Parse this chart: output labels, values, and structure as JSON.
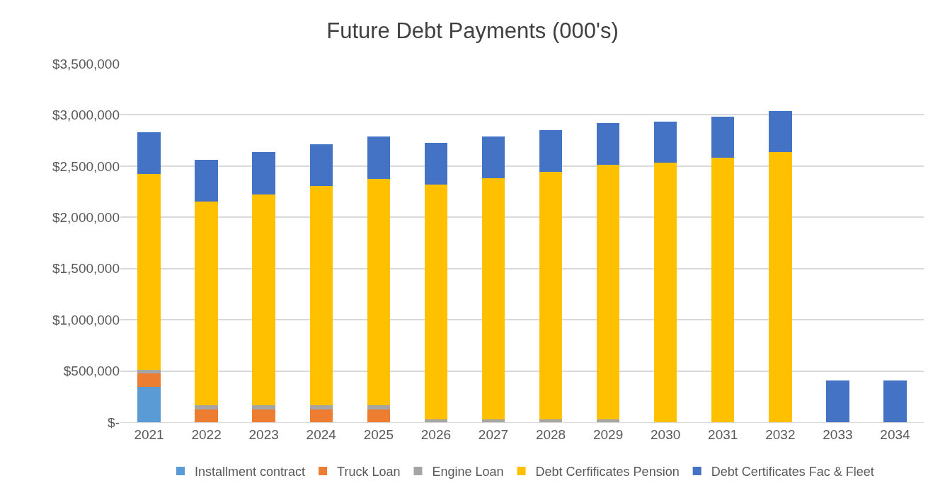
{
  "chart_data": {
    "type": "bar",
    "title": "Future Debt Payments (000's)",
    "stacked": true,
    "grid": "y",
    "legend": "bottom",
    "categories": [
      "2021",
      "2022",
      "2023",
      "2024",
      "2025",
      "2026",
      "2027",
      "2028",
      "2029",
      "2030",
      "2031",
      "2032",
      "2033",
      "2034"
    ],
    "ylim": [
      0,
      3500000
    ],
    "yticks": [
      {
        "value": 0,
        "label": "$-"
      },
      {
        "value": 500000,
        "label": "$500,000"
      },
      {
        "value": 1000000,
        "label": "$1,000,000"
      },
      {
        "value": 1500000,
        "label": "$1,500,000"
      },
      {
        "value": 2000000,
        "label": "$2,000,000"
      },
      {
        "value": 2500000,
        "label": "$2,500,000"
      },
      {
        "value": 3000000,
        "label": "$3,000,000"
      },
      {
        "value": 3500000,
        "label": "$3,500,000"
      }
    ],
    "series": [
      {
        "name": "Installment contract",
        "color": "#5b9bd5",
        "values": [
          348000,
          null,
          null,
          null,
          null,
          null,
          null,
          null,
          null,
          null,
          null,
          null,
          null,
          null
        ]
      },
      {
        "name": "Truck Loan",
        "color": "#ed7d31",
        "values": [
          130000,
          125000,
          125000,
          125000,
          125000,
          null,
          null,
          null,
          null,
          null,
          null,
          null,
          null,
          null
        ]
      },
      {
        "name": "Engine Loan",
        "color": "#a5a5a5",
        "values": [
          36000,
          41000,
          41000,
          41000,
          41000,
          31000,
          31000,
          31000,
          31000,
          null,
          null,
          null,
          null,
          null
        ]
      },
      {
        "name": "Debt Cerfificates Pension",
        "color": "#ffc000",
        "values": [
          1910000,
          1986000,
          2057000,
          2142000,
          2209000,
          2290000,
          2353000,
          2415000,
          2482000,
          2531000,
          2580000,
          2634000,
          null,
          null
        ]
      },
      {
        "name": "Debt Certificates Fac & Fleet",
        "color": "#4472c4",
        "values": [
          406000,
          406000,
          411000,
          406000,
          411000,
          407000,
          406000,
          402000,
          407000,
          402000,
          402000,
          402000,
          404000,
          404000
        ]
      }
    ]
  }
}
